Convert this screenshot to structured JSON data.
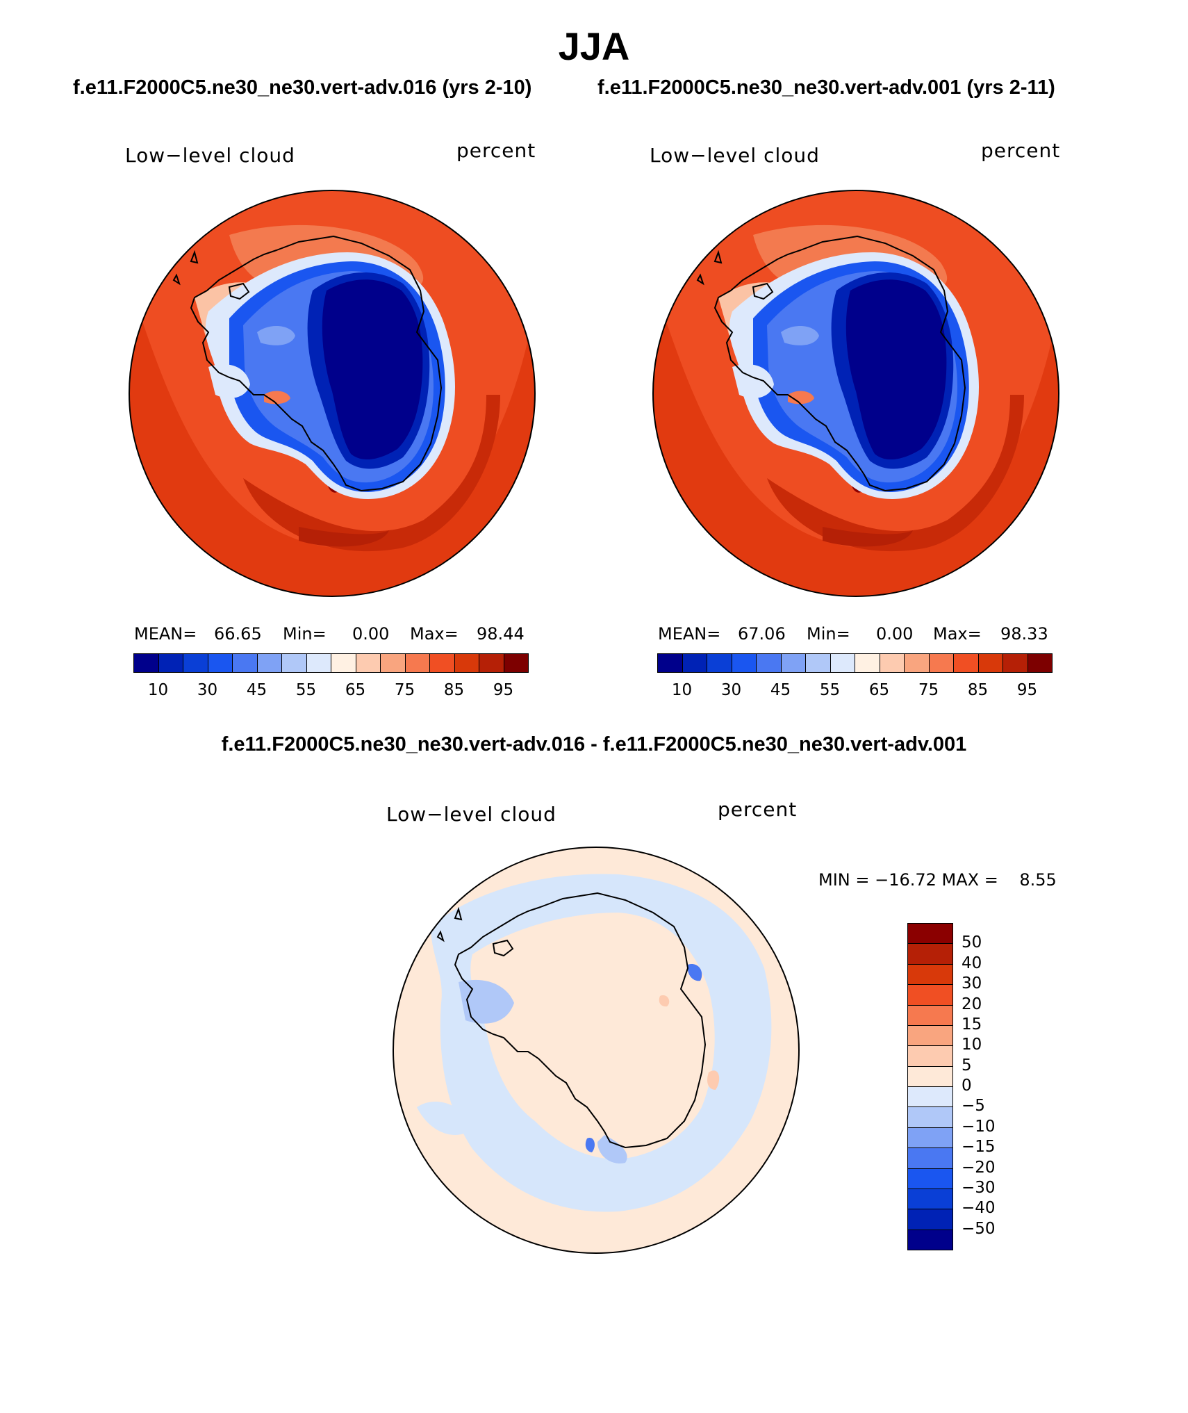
{
  "title": "JJA",
  "panels": [
    {
      "case_title": "f.e11.F2000C5.ne30_ne30.vert-adv.016 (yrs 2-10)",
      "variable": "Low−level cloud",
      "units": "percent",
      "stats": {
        "mean_label": "MEAN=",
        "mean": "66.65",
        "min_label": "Min=",
        "min": "0.00",
        "max_label": "Max=",
        "max": "98.44"
      }
    },
    {
      "case_title": "f.e11.F2000C5.ne30_ne30.vert-adv.001 (yrs 2-11)",
      "variable": "Low−level cloud",
      "units": "percent",
      "stats": {
        "mean_label": "MEAN=",
        "mean": "67.06",
        "min_label": "Min=",
        "min": "0.00",
        "max_label": "Max=",
        "max": "98.33"
      }
    }
  ],
  "abs_colorbar": {
    "colors": [
      "#00008b",
      "#0022b5",
      "#0a3fd6",
      "#1a56f0",
      "#4a78f2",
      "#7fa2f5",
      "#b0c8f8",
      "#dde9fc",
      "#fff1e3",
      "#fdcbb0",
      "#f9a57f",
      "#f6794f",
      "#f04f23",
      "#d8390a",
      "#b52006",
      "#7d0000"
    ],
    "labels": [
      "10",
      "30",
      "45",
      "55",
      "65",
      "75",
      "85",
      "95"
    ]
  },
  "diff": {
    "title": "f.e11.F2000C5.ne30_ne30.vert-adv.016 - f.e11.F2000C5.ne30_ne30.vert-adv.001",
    "variable": "Low−level cloud",
    "units": "percent",
    "minmax_text": "MIN = −16.72 MAX =    8.55",
    "colorbar": {
      "colors": [
        "#8b0000",
        "#b52006",
        "#d8390a",
        "#f04f23",
        "#f6794f",
        "#f9a57f",
        "#fdcbb0",
        "#fee9d8",
        "#dde9fc",
        "#b0c8f8",
        "#7fa2f5",
        "#4a78f2",
        "#1a56f0",
        "#0a3fd6",
        "#0022b5",
        "#00008b"
      ],
      "labels": [
        "50",
        "40",
        "30",
        "20",
        "15",
        "10",
        "5",
        "0",
        "−5",
        "−10",
        "−15",
        "−20",
        "−30",
        "−40",
        "−50"
      ]
    }
  },
  "colors": {
    "ocean_high": "#e8360f",
    "ocean_mid": "#f25428",
    "land_low": "#00008b",
    "diff_pos": "#fee9d8",
    "diff_neg": "#d6e6fb"
  }
}
